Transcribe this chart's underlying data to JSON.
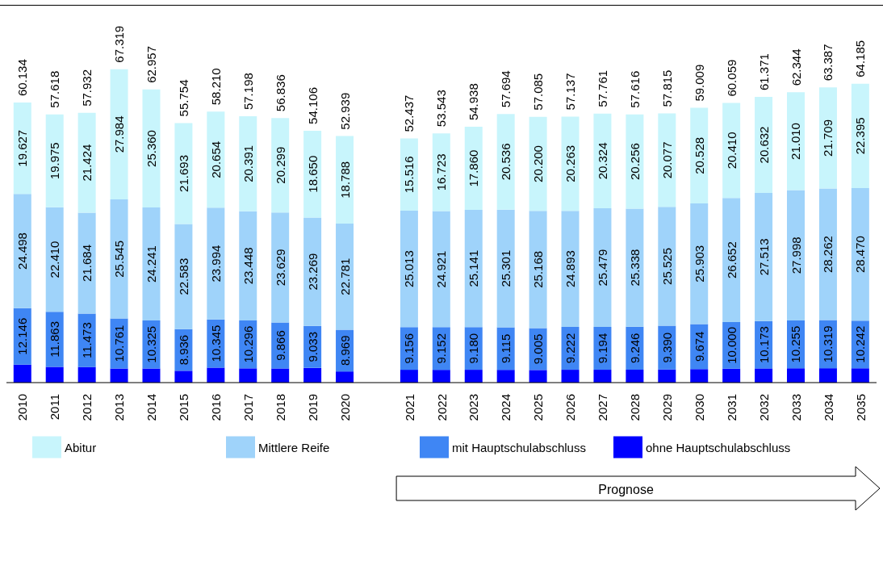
{
  "chart_data": {
    "type": "bar",
    "stacked": true,
    "legend": "bottom",
    "categories": [
      "2010",
      "2011",
      "2012",
      "2013",
      "2014",
      "2015",
      "2016",
      "2017",
      "2018",
      "2019",
      "2020",
      null,
      "2021",
      "2022",
      "2023",
      "2024",
      "2025",
      "2026",
      "2027",
      "2028",
      "2029",
      "2030",
      "2031",
      "2032",
      "2033",
      "2034",
      "2035"
    ],
    "series": [
      {
        "name": "ohne Hauptschulabschluss",
        "color": "#0000ff",
        "values": [
          3863,
          3370,
          3351,
          3029,
          3031,
          2542,
          3217,
          3063,
          3042,
          3154,
          2401,
          null,
          2752,
          2747,
          2757,
          2742,
          2712,
          2759,
          2764,
          2776,
          2823,
          2904,
          2997,
          3053,
          3081,
          3097,
          3078
        ]
      },
      {
        "name": "mit Hauptschulabschluss",
        "color": "#3f86f4",
        "values": [
          12146,
          11863,
          11473,
          10761,
          10325,
          8936,
          10345,
          10296,
          9866,
          9033,
          8969,
          null,
          9156,
          9152,
          9180,
          9115,
          9005,
          9222,
          9194,
          9246,
          9390,
          9674,
          10000,
          10173,
          10255,
          10319,
          10242
        ],
        "value_labels": [
          "12.146",
          "11.863",
          "11.473",
          "10.761",
          "10.325",
          "8.936",
          "10.345",
          "10.296",
          "9.866",
          "9.033",
          "8.969",
          null,
          "9.156",
          "9.152",
          "9.180",
          "9.115",
          "9.005",
          "9.222",
          "9.194",
          "9.246",
          "9.390",
          "9.674",
          "10.000",
          "10.173",
          "10.255",
          "10.319",
          "10.242"
        ]
      },
      {
        "name": "Mittlere Reife",
        "color": "#9fd3fa",
        "values": [
          24498,
          22410,
          21684,
          25545,
          24241,
          22583,
          23994,
          23448,
          23629,
          23269,
          22781,
          null,
          25013,
          24921,
          25141,
          25301,
          25168,
          24893,
          25479,
          25338,
          25525,
          25903,
          26652,
          27513,
          27998,
          28262,
          28470
        ],
        "value_labels": [
          "24.498",
          "22.410",
          "21.684",
          "25.545",
          "24.241",
          "22.583",
          "23.994",
          "23.448",
          "23.629",
          "23.269",
          "22.781",
          null,
          "25.013",
          "24.921",
          "25.141",
          "25.301",
          "25.168",
          "24.893",
          "25.479",
          "25.338",
          "25.525",
          "25.903",
          "26.652",
          "27.513",
          "27.998",
          "28.262",
          "28.470"
        ]
      },
      {
        "name": "Abitur",
        "color": "#c8f5fc",
        "values": [
          19627,
          19975,
          21424,
          27984,
          25360,
          21693,
          20654,
          20391,
          20299,
          18650,
          18788,
          null,
          15516,
          16723,
          17860,
          20536,
          20200,
          20263,
          20324,
          20256,
          20077,
          20528,
          20410,
          20632,
          21010,
          21709,
          22395
        ],
        "value_labels": [
          "19.627",
          "19.975",
          "21.424",
          "27.984",
          "25.360",
          "21.693",
          "20.654",
          "20.391",
          "20.299",
          "18.650",
          "18.788",
          null,
          "15.516",
          "16.723",
          "17.860",
          "20.536",
          "20.200",
          "20.263",
          "20.324",
          "20.256",
          "20.077",
          "20.528",
          "20.410",
          "20.632",
          "21.010",
          "21.709",
          "22.395"
        ]
      }
    ],
    "totals": [
      "60.134",
      "57.618",
      "57.932",
      "67.319",
      "62.957",
      "55.754",
      "58.210",
      "57.198",
      "56.836",
      "54.106",
      "52.939",
      null,
      "52.437",
      "53.543",
      "54.938",
      "57.694",
      "57.085",
      "57.137",
      "57.761",
      "57.616",
      "57.815",
      "59.009",
      "60.059",
      "61.371",
      "62.344",
      "63.387",
      "64.185"
    ],
    "annotations": [
      "Prognose"
    ]
  }
}
